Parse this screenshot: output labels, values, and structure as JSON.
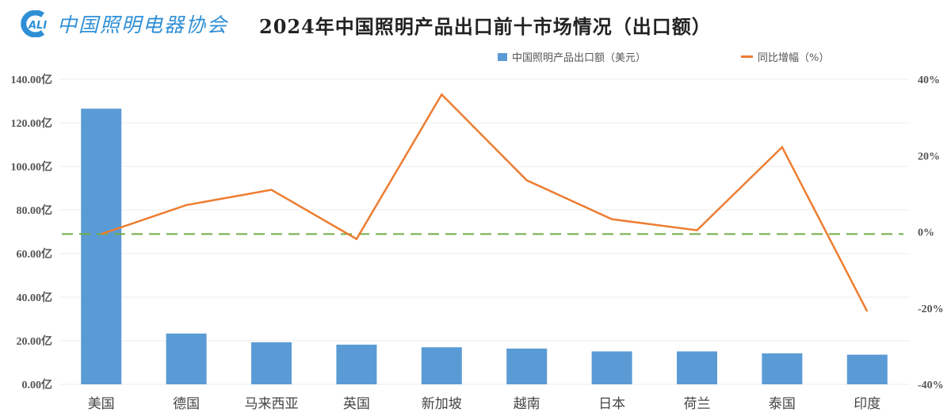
{
  "header": {
    "logo_mark": "CALI",
    "logo_text": "中国照明电器协会",
    "title": "2024年中国照明产品出口前十市场情况（出口额）"
  },
  "legend": {
    "bar_label": "中国照明产品出口额（美元）",
    "line_label": "同比增幅（%）"
  },
  "colors": {
    "bar": "#5b9bd5",
    "line": "#ed7d31",
    "reference_line": "#70ad47",
    "gridline": "#ececec",
    "logo": "#2f8fd6"
  },
  "chart_data": {
    "type": "bar+line",
    "title": "2024年中国照明产品出口前十市场情况（出口额）",
    "xlabel": "",
    "ylabel": "",
    "categories": [
      "美国",
      "德国",
      "马来西亚",
      "英国",
      "新加坡",
      "越南",
      "日本",
      "荷兰",
      "泰国",
      "印度"
    ],
    "series": [
      {
        "name": "中国照明产品出口额（美元）",
        "type": "bar",
        "axis": "left",
        "unit": "亿",
        "values": [
          126.5,
          23.3,
          19.3,
          18.2,
          17.0,
          16.4,
          15.1,
          15.1,
          14.2,
          13.6
        ]
      },
      {
        "name": "同比增幅（%）",
        "type": "line",
        "axis": "right",
        "unit": "%",
        "values": [
          -0.6,
          7.0,
          11.0,
          -1.9,
          36.0,
          13.5,
          3.3,
          0.4,
          22.2,
          -20.9
        ]
      }
    ],
    "reference_line": {
      "axis": "right",
      "value": -0.6,
      "style": "dashed"
    },
    "left_axis": {
      "ylim": [
        0,
        140
      ],
      "ticks": [
        0,
        20,
        40,
        60,
        80,
        100,
        120,
        140
      ],
      "tick_labels": [
        "0.00亿",
        "20.00亿",
        "40.00亿",
        "60.00亿",
        "80.00亿",
        "100.00亿",
        "120.00亿",
        "140.00亿"
      ]
    },
    "right_axis": {
      "ylim": [
        -40,
        40
      ],
      "ticks": [
        -40,
        -20,
        0,
        20,
        40
      ],
      "tick_labels": [
        "-40%",
        "-20%",
        "0%",
        "20%",
        "40%"
      ]
    },
    "grid": true,
    "legend_position": "top"
  }
}
